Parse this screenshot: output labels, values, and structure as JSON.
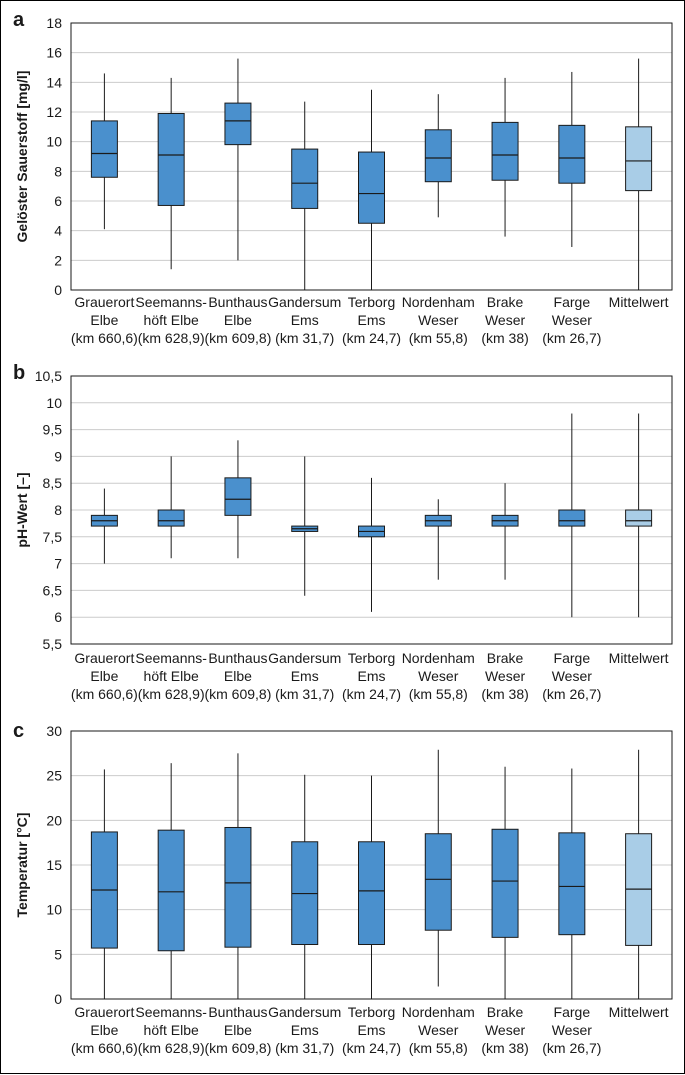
{
  "categories": [
    [
      "Grauerort",
      "Elbe",
      "(km 660,6)"
    ],
    [
      "Seemanns-",
      "höft Elbe",
      "(km 628,9)"
    ],
    [
      "Bunthaus",
      "Elbe",
      "(km 609,8)"
    ],
    [
      "Gandersum",
      "Ems",
      "(km 31,7)"
    ],
    [
      "Terborg",
      "Ems",
      "(km 24,7)"
    ],
    [
      "Nordenham",
      "Weser",
      "(km 55,8)"
    ],
    [
      "Brake",
      "Weser",
      "(km 38)"
    ],
    [
      "Farge",
      "Weser",
      "(km 26,7)"
    ],
    [
      "Mittelwert"
    ]
  ],
  "colors": {
    "box": "#4a90cd",
    "mean_box": "#a9cde7",
    "grid": "#cccccc",
    "line": "#1a1a1a"
  },
  "chart_data": [
    {
      "panel": "a",
      "type": "boxplot",
      "ylabel": "Gelöster Sauerstoff [mg/l]",
      "ylim": [
        0,
        18
      ],
      "yticks": [
        0,
        2,
        4,
        6,
        8,
        10,
        12,
        14,
        16,
        18
      ],
      "ytick_labels": [
        "0",
        "2",
        "4",
        "6",
        "8",
        "10",
        "12",
        "14",
        "16",
        "18"
      ],
      "boxes": [
        {
          "min": 4.1,
          "q1": 7.6,
          "median": 9.2,
          "q3": 11.4,
          "max": 14.6
        },
        {
          "min": 1.4,
          "q1": 5.7,
          "median": 9.1,
          "q3": 11.9,
          "max": 14.3
        },
        {
          "min": 2.0,
          "q1": 9.8,
          "median": 11.4,
          "q3": 12.6,
          "max": 15.6
        },
        {
          "min": 0.0,
          "q1": 5.5,
          "median": 7.2,
          "q3": 9.5,
          "max": 12.7
        },
        {
          "min": 0.0,
          "q1": 4.5,
          "median": 6.5,
          "q3": 9.3,
          "max": 13.5
        },
        {
          "min": 4.9,
          "q1": 7.3,
          "median": 8.9,
          "q3": 10.8,
          "max": 13.2
        },
        {
          "min": 3.6,
          "q1": 7.4,
          "median": 9.1,
          "q3": 11.3,
          "max": 14.3
        },
        {
          "min": 2.9,
          "q1": 7.2,
          "median": 8.9,
          "q3": 11.1,
          "max": 14.7
        },
        {
          "min": 0.0,
          "q1": 6.7,
          "median": 8.7,
          "q3": 11.0,
          "max": 15.6
        }
      ]
    },
    {
      "panel": "b",
      "type": "boxplot",
      "ylabel": "pH-Wert [–]",
      "ylim": [
        5.5,
        10.5
      ],
      "yticks": [
        5.5,
        6,
        6.5,
        7,
        7.5,
        8,
        8.5,
        9,
        9.5,
        10,
        10.5
      ],
      "ytick_labels": [
        "5,5",
        "6",
        "6,5",
        "7",
        "7,5",
        "8",
        "8,5",
        "9",
        "9,5",
        "10",
        "10,5"
      ],
      "boxes": [
        {
          "min": 7.0,
          "q1": 7.7,
          "median": 7.8,
          "q3": 7.9,
          "max": 8.4
        },
        {
          "min": 7.1,
          "q1": 7.7,
          "median": 7.8,
          "q3": 8.0,
          "max": 9.0
        },
        {
          "min": 7.1,
          "q1": 7.9,
          "median": 8.2,
          "q3": 8.6,
          "max": 9.3
        },
        {
          "min": 6.4,
          "q1": 7.6,
          "median": 7.65,
          "q3": 7.7,
          "max": 9.0
        },
        {
          "min": 6.1,
          "q1": 7.5,
          "median": 7.6,
          "q3": 7.7,
          "max": 8.6
        },
        {
          "min": 6.7,
          "q1": 7.7,
          "median": 7.8,
          "q3": 7.9,
          "max": 8.2
        },
        {
          "min": 6.7,
          "q1": 7.7,
          "median": 7.8,
          "q3": 7.9,
          "max": 8.5
        },
        {
          "min": 6.0,
          "q1": 7.7,
          "median": 7.8,
          "q3": 8.0,
          "max": 9.8
        },
        {
          "min": 6.0,
          "q1": 7.7,
          "median": 7.8,
          "q3": 8.0,
          "max": 9.8
        }
      ]
    },
    {
      "panel": "c",
      "type": "boxplot",
      "ylabel": "Temperatur [°C]",
      "ylim": [
        0,
        30
      ],
      "yticks": [
        0,
        5,
        10,
        15,
        20,
        25,
        30
      ],
      "ytick_labels": [
        "0",
        "5",
        "10",
        "15",
        "20",
        "25",
        "30"
      ],
      "boxes": [
        {
          "min": 0.0,
          "q1": 5.7,
          "median": 12.2,
          "q3": 18.7,
          "max": 25.7
        },
        {
          "min": 0.0,
          "q1": 5.4,
          "median": 12.0,
          "q3": 18.9,
          "max": 26.4
        },
        {
          "min": 0.0,
          "q1": 5.8,
          "median": 13.0,
          "q3": 19.2,
          "max": 27.5
        },
        {
          "min": 0.0,
          "q1": 6.1,
          "median": 11.8,
          "q3": 17.6,
          "max": 25.1
        },
        {
          "min": 0.0,
          "q1": 6.1,
          "median": 12.1,
          "q3": 17.6,
          "max": 25.0
        },
        {
          "min": 1.4,
          "q1": 7.7,
          "median": 13.4,
          "q3": 18.5,
          "max": 27.9
        },
        {
          "min": 0.0,
          "q1": 6.9,
          "median": 13.2,
          "q3": 19.0,
          "max": 26.0
        },
        {
          "min": 0.0,
          "q1": 7.2,
          "median": 12.6,
          "q3": 18.6,
          "max": 25.8
        },
        {
          "min": 0.0,
          "q1": 6.0,
          "median": 12.3,
          "q3": 18.5,
          "max": 27.9
        }
      ]
    }
  ]
}
